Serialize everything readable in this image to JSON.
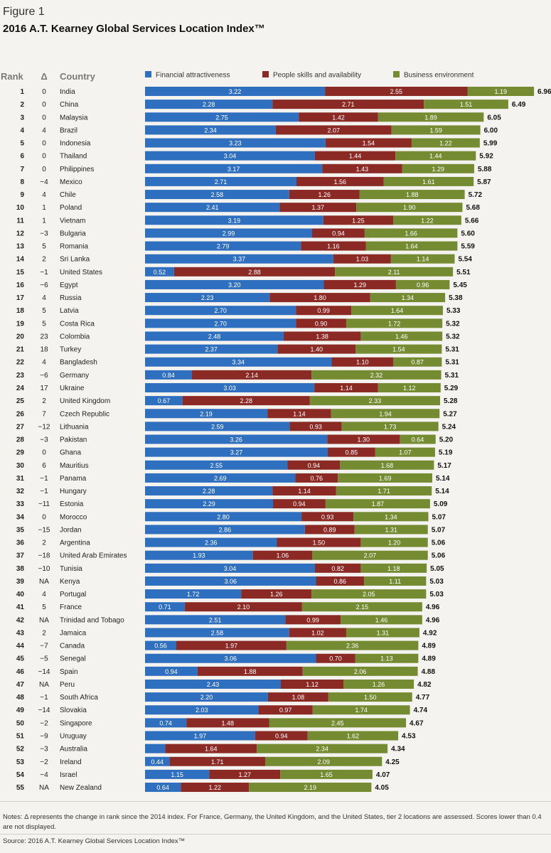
{
  "figure_label": "Figure 1",
  "title": "2016 A.T. Kearney Global Services Location Index™",
  "notes": "Notes: Δ represents the change in rank since the 2014 index. For France, Germany, the United Kingdom, and the United States, tier 2 locations are assessed. Scores lower than 0.4 are not displayed.",
  "source": "Source: 2016 A.T. Kearney Global Services Location Index™",
  "chart_data": {
    "type": "bar",
    "orientation": "horizontal",
    "stacked": true,
    "column_headers": {
      "rank": "Rank",
      "delta": "Δ",
      "country": "Country"
    },
    "legend_position": "top",
    "display_threshold": 0.4,
    "series": [
      {
        "name": "Financial attractiveness",
        "color": "#2f6fc0"
      },
      {
        "name": "People skills and availability",
        "color": "#8b2a25"
      },
      {
        "name": "Business environment",
        "color": "#758b32"
      }
    ],
    "rows": [
      {
        "rank": "1",
        "delta": "0",
        "country": "India",
        "values": [
          3.22,
          2.55,
          1.19
        ],
        "total": "6.96"
      },
      {
        "rank": "2",
        "delta": "0",
        "country": "China",
        "values": [
          2.28,
          2.71,
          1.51
        ],
        "total": "6.49"
      },
      {
        "rank": "3",
        "delta": "0",
        "country": "Malaysia",
        "values": [
          2.75,
          1.42,
          1.89
        ],
        "total": "6.05"
      },
      {
        "rank": "4",
        "delta": "4",
        "country": "Brazil",
        "values": [
          2.34,
          2.07,
          1.59
        ],
        "total": "6.00"
      },
      {
        "rank": "5",
        "delta": "0",
        "country": "Indonesia",
        "values": [
          3.23,
          1.54,
          1.22
        ],
        "total": "5.99"
      },
      {
        "rank": "6",
        "delta": "0",
        "country": "Thailand",
        "values": [
          3.04,
          1.44,
          1.44
        ],
        "total": "5.92"
      },
      {
        "rank": "7",
        "delta": "0",
        "country": "Philippines",
        "values": [
          3.17,
          1.43,
          1.29
        ],
        "total": "5.88"
      },
      {
        "rank": "8",
        "delta": "−4",
        "country": "Mexico",
        "values": [
          2.71,
          1.56,
          1.61
        ],
        "total": "5.87"
      },
      {
        "rank": "9",
        "delta": "4",
        "country": "Chile",
        "values": [
          2.58,
          1.26,
          1.88
        ],
        "total": "5.72"
      },
      {
        "rank": "10",
        "delta": "1",
        "country": "Poland",
        "values": [
          2.41,
          1.37,
          1.9
        ],
        "total": "5.68"
      },
      {
        "rank": "11",
        "delta": "1",
        "country": "Vietnam",
        "values": [
          3.19,
          1.25,
          1.22
        ],
        "total": "5.66"
      },
      {
        "rank": "12",
        "delta": "−3",
        "country": "Bulgaria",
        "values": [
          2.99,
          0.94,
          1.66
        ],
        "total": "5.60"
      },
      {
        "rank": "13",
        "delta": "5",
        "country": "Romania",
        "values": [
          2.79,
          1.16,
          1.64
        ],
        "total": "5.59"
      },
      {
        "rank": "14",
        "delta": "2",
        "country": "Sri Lanka",
        "values": [
          3.37,
          1.03,
          1.14
        ],
        "total": "5.54"
      },
      {
        "rank": "15",
        "delta": "−1",
        "country": "United States",
        "values": [
          0.52,
          2.88,
          2.11
        ],
        "total": "5.51"
      },
      {
        "rank": "16",
        "delta": "−6",
        "country": "Egypt",
        "values": [
          3.2,
          1.29,
          0.96
        ],
        "total": "5.45"
      },
      {
        "rank": "17",
        "delta": "4",
        "country": "Russia",
        "values": [
          2.23,
          1.8,
          1.34
        ],
        "total": "5.38"
      },
      {
        "rank": "18",
        "delta": "5",
        "country": "Latvia",
        "values": [
          2.7,
          0.99,
          1.64
        ],
        "total": "5.33"
      },
      {
        "rank": "19",
        "delta": "5",
        "country": "Costa Rica",
        "values": [
          2.7,
          0.9,
          1.72
        ],
        "total": "5.32"
      },
      {
        "rank": "20",
        "delta": "23",
        "country": "Colombia",
        "values": [
          2.48,
          1.38,
          1.46
        ],
        "total": "5.32"
      },
      {
        "rank": "21",
        "delta": "18",
        "country": "Turkey",
        "values": [
          2.37,
          1.4,
          1.54
        ],
        "total": "5.31"
      },
      {
        "rank": "22",
        "delta": "4",
        "country": "Bangladesh",
        "values": [
          3.34,
          1.1,
          0.87
        ],
        "total": "5.31"
      },
      {
        "rank": "23",
        "delta": "−6",
        "country": "Germany",
        "values": [
          0.84,
          2.14,
          2.32
        ],
        "total": "5.31"
      },
      {
        "rank": "24",
        "delta": "17",
        "country": "Ukraine",
        "values": [
          3.03,
          1.14,
          1.12
        ],
        "total": "5.29"
      },
      {
        "rank": "25",
        "delta": "2",
        "country": "United Kingdom",
        "values": [
          0.67,
          2.28,
          2.33
        ],
        "total": "5.28"
      },
      {
        "rank": "26",
        "delta": "7",
        "country": "Czech Republic",
        "values": [
          2.19,
          1.14,
          1.94
        ],
        "total": "5.27"
      },
      {
        "rank": "27",
        "delta": "−12",
        "country": "Lithuania",
        "values": [
          2.59,
          0.93,
          1.73
        ],
        "total": "5.24"
      },
      {
        "rank": "28",
        "delta": "−3",
        "country": "Pakistan",
        "values": [
          3.26,
          1.3,
          0.64
        ],
        "total": "5.20"
      },
      {
        "rank": "29",
        "delta": "0",
        "country": "Ghana",
        "values": [
          3.27,
          0.85,
          1.07
        ],
        "total": "5.19"
      },
      {
        "rank": "30",
        "delta": "6",
        "country": "Mauritius",
        "values": [
          2.55,
          0.94,
          1.68
        ],
        "total": "5.17"
      },
      {
        "rank": "31",
        "delta": "−1",
        "country": "Panama",
        "values": [
          2.69,
          0.76,
          1.69
        ],
        "total": "5.14"
      },
      {
        "rank": "32",
        "delta": "−1",
        "country": "Hungary",
        "values": [
          2.28,
          1.14,
          1.71
        ],
        "total": "5.14"
      },
      {
        "rank": "33",
        "delta": "−11",
        "country": "Estonia",
        "values": [
          2.29,
          0.94,
          1.87
        ],
        "total": "5.09"
      },
      {
        "rank": "34",
        "delta": "0",
        "country": "Morocco",
        "values": [
          2.8,
          0.93,
          1.34
        ],
        "total": "5.07"
      },
      {
        "rank": "35",
        "delta": "−15",
        "country": "Jordan",
        "values": [
          2.86,
          0.89,
          1.31
        ],
        "total": "5.07"
      },
      {
        "rank": "36",
        "delta": "2",
        "country": "Argentina",
        "values": [
          2.36,
          1.5,
          1.2
        ],
        "total": "5.06"
      },
      {
        "rank": "37",
        "delta": "−18",
        "country": "United Arab Emirates",
        "values": [
          1.93,
          1.06,
          2.07
        ],
        "total": "5.06"
      },
      {
        "rank": "38",
        "delta": "−10",
        "country": "Tunisia",
        "values": [
          3.04,
          0.82,
          1.18
        ],
        "total": "5.05"
      },
      {
        "rank": "39",
        "delta": "NA",
        "country": "Kenya",
        "values": [
          3.06,
          0.86,
          1.11
        ],
        "total": "5.03"
      },
      {
        "rank": "40",
        "delta": "4",
        "country": "Portugal",
        "values": [
          1.72,
          1.26,
          2.05
        ],
        "total": "5.03"
      },
      {
        "rank": "41",
        "delta": "5",
        "country": "France",
        "values": [
          0.71,
          2.1,
          2.15
        ],
        "total": "4.96"
      },
      {
        "rank": "42",
        "delta": "NA",
        "country": "Trinidad and Tobago",
        "values": [
          2.51,
          0.99,
          1.46
        ],
        "total": "4.96"
      },
      {
        "rank": "43",
        "delta": "2",
        "country": "Jamaica",
        "values": [
          2.58,
          1.02,
          1.31
        ],
        "total": "4.92"
      },
      {
        "rank": "44",
        "delta": "−7",
        "country": "Canada",
        "values": [
          0.56,
          1.97,
          2.36
        ],
        "total": "4.89"
      },
      {
        "rank": "45",
        "delta": "−5",
        "country": "Senegal",
        "values": [
          3.06,
          0.7,
          1.13
        ],
        "total": "4.89"
      },
      {
        "rank": "46",
        "delta": "−14",
        "country": "Spain",
        "values": [
          0.94,
          1.88,
          2.06
        ],
        "total": "4.88"
      },
      {
        "rank": "47",
        "delta": "NA",
        "country": "Peru",
        "values": [
          2.43,
          1.12,
          1.26
        ],
        "total": "4.82"
      },
      {
        "rank": "48",
        "delta": "−1",
        "country": "South Africa",
        "values": [
          2.2,
          1.08,
          1.5
        ],
        "total": "4.77"
      },
      {
        "rank": "49",
        "delta": "−14",
        "country": "Slovakia",
        "values": [
          2.03,
          0.97,
          1.74
        ],
        "total": "4.74"
      },
      {
        "rank": "50",
        "delta": "−2",
        "country": "Singapore",
        "values": [
          0.74,
          1.48,
          2.45
        ],
        "total": "4.67"
      },
      {
        "rank": "51",
        "delta": "−9",
        "country": "Uruguay",
        "values": [
          1.97,
          0.94,
          1.62
        ],
        "total": "4.53"
      },
      {
        "rank": "52",
        "delta": "−3",
        "country": "Australia",
        "values": [
          0.36,
          1.64,
          2.34
        ],
        "total": "4.34"
      },
      {
        "rank": "53",
        "delta": "−2",
        "country": "Ireland",
        "values": [
          0.44,
          1.71,
          2.09
        ],
        "total": "4.25"
      },
      {
        "rank": "54",
        "delta": "−4",
        "country": "Israel",
        "values": [
          1.15,
          1.27,
          1.65
        ],
        "total": "4.07"
      },
      {
        "rank": "55",
        "delta": "NA",
        "country": "New Zealand",
        "values": [
          0.64,
          1.22,
          2.19
        ],
        "total": "4.05"
      }
    ]
  }
}
